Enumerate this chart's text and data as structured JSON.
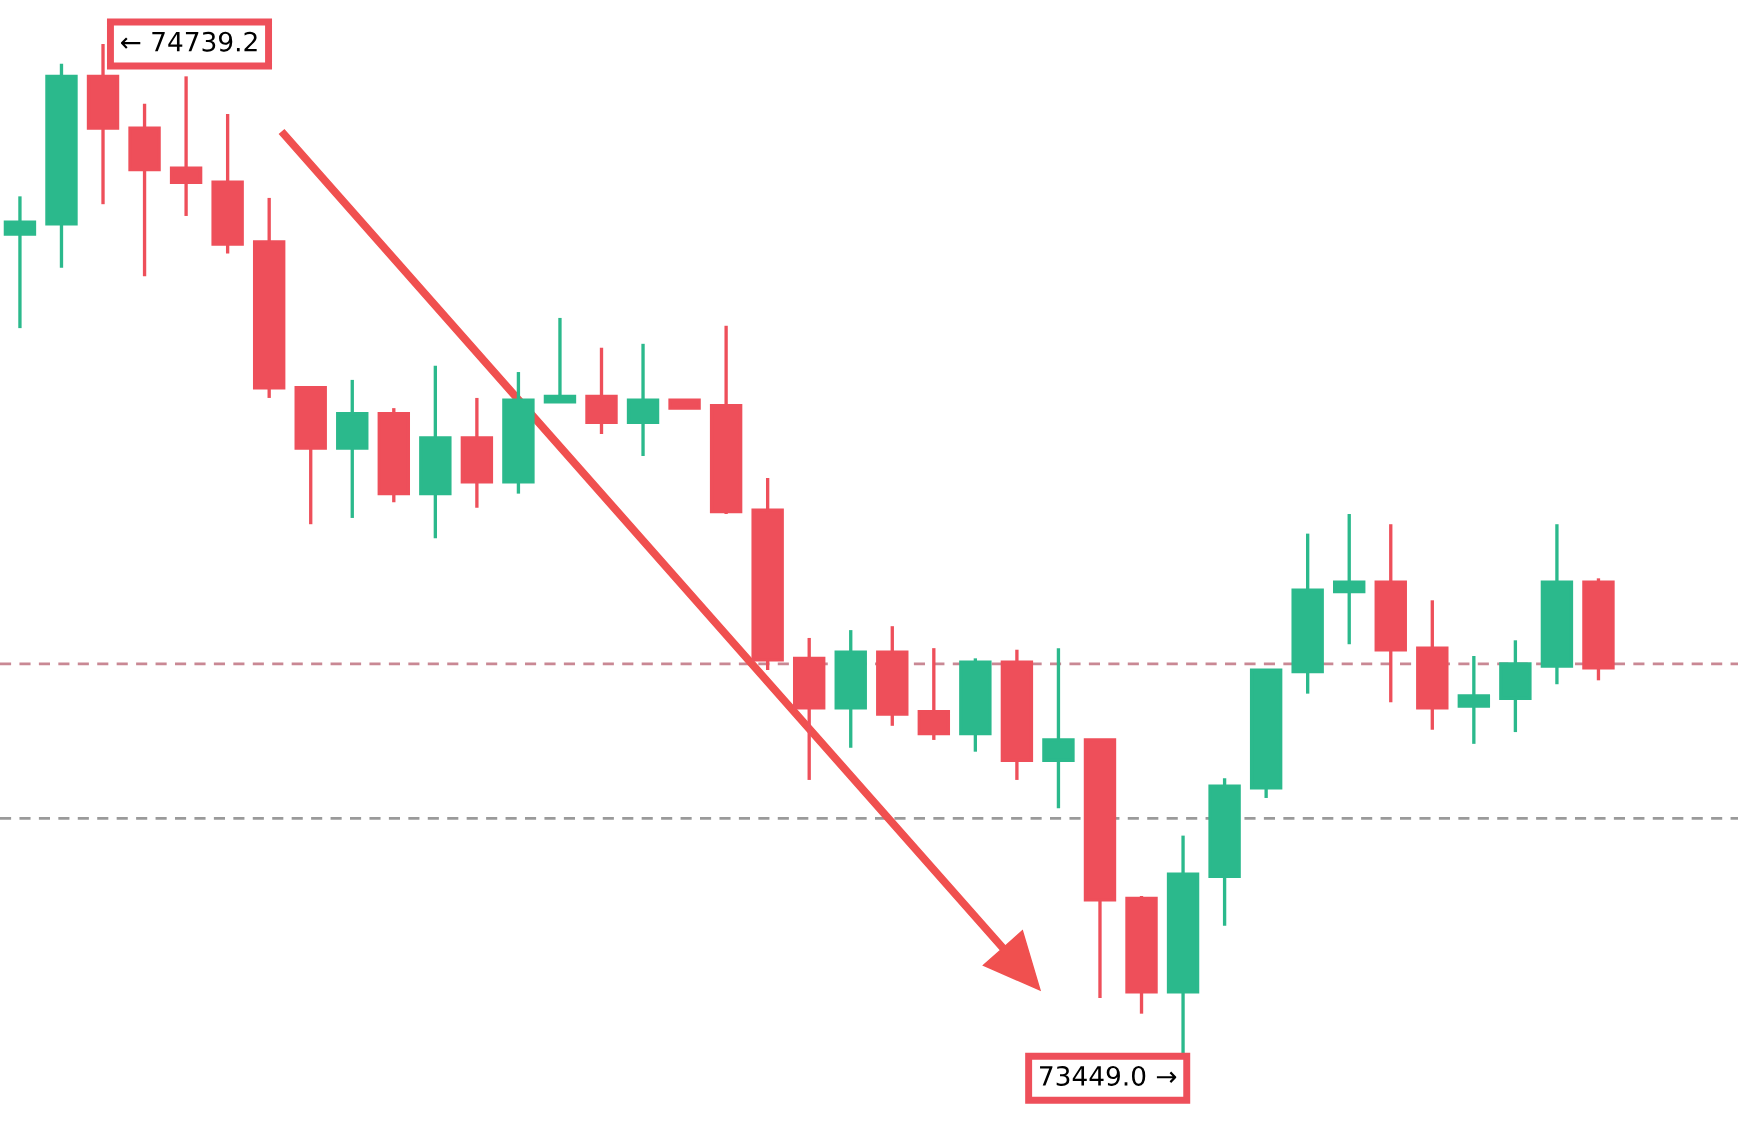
{
  "chart_data": {
    "type": "candlestick",
    "categories": [
      null,
      null,
      null,
      null,
      null,
      null,
      null,
      null,
      null,
      null,
      null,
      null,
      null,
      null,
      null,
      null,
      null,
      null,
      null,
      null,
      null,
      null,
      null,
      null,
      null,
      null,
      null,
      null,
      null,
      null,
      null,
      null,
      null,
      null,
      null,
      null,
      null,
      null,
      null
    ],
    "ohlc": [
      [
        74497,
        74545,
        74377,
        74512
      ],
      [
        74510,
        74714,
        74454,
        74698
      ],
      [
        74698,
        74739.2,
        74535,
        74632
      ],
      [
        74632,
        74663,
        74443,
        74579
      ],
      [
        74581,
        74698,
        74520,
        74563
      ],
      [
        74563,
        74650,
        74472,
        74484
      ],
      [
        74487,
        74543,
        74288,
        74301
      ],
      [
        74301,
        74301,
        74127,
        74224
      ],
      [
        74224,
        74311,
        74135,
        74268
      ],
      [
        74268,
        74275,
        74155,
        74166
      ],
      [
        74166,
        74329,
        74109,
        74237
      ],
      [
        74237,
        74288,
        74148,
        74181
      ],
      [
        74181,
        74321,
        74166,
        74285
      ],
      [
        74283,
        74390,
        74283,
        74290
      ],
      [
        74290,
        74352,
        74242,
        74257
      ],
      [
        74257,
        74357,
        74214,
        74285
      ],
      [
        74285,
        74285,
        74275,
        74275
      ],
      [
        74278,
        74380,
        74140,
        74143
      ],
      [
        74145,
        74186,
        73941,
        73954
      ],
      [
        73956,
        73982,
        73801,
        73893
      ],
      [
        73893,
        73992,
        73842,
        73964
      ],
      [
        73964,
        73997,
        73870,
        73885
      ],
      [
        73888,
        73969,
        73852,
        73860
      ],
      [
        73860,
        73956,
        73837,
        73951
      ],
      [
        73951,
        73967,
        73801,
        73826
      ],
      [
        73826,
        73969,
        73765,
        73852
      ],
      [
        73852,
        73852,
        73523,
        73648
      ],
      [
        73650,
        73653,
        73503,
        73531
      ],
      [
        73531,
        73730,
        73449.0,
        73681
      ],
      [
        73678,
        73803,
        73615,
        73793
      ],
      [
        73791,
        73941,
        73778,
        73941
      ],
      [
        73939,
        74115,
        73911,
        74043
      ],
      [
        74041,
        74140,
        73974,
        74053
      ],
      [
        74053,
        74127,
        73900,
        73967
      ],
      [
        73969,
        74030,
        73865,
        73893
      ],
      [
        73895,
        73959,
        73847,
        73908
      ],
      [
        73905,
        73979,
        73862,
        73949
      ],
      [
        73946,
        74127,
        73923,
        74053
      ],
      [
        74053,
        74058,
        73928,
        73944
      ]
    ],
    "colors": [
      "#2bb98c",
      "#2bb98c",
      "#ee4f5a",
      "#ee4f5a",
      "#ee4f5a",
      "#ee4f5a",
      "#ee4f5a",
      "#ee4f5a",
      "#2bb98c",
      "#ee4f5a",
      "#2bb98c",
      "#ee4f5a",
      "#2bb98c",
      "#2bb98c",
      "#ee4f5a",
      "#2bb98c",
      "#ee4f5a",
      "#ee4f5a",
      "#ee4f5a",
      "#ee4f5a",
      "#2bb98c",
      "#ee4f5a",
      "#ee4f5a",
      "#2bb98c",
      "#ee4f5a",
      "#2bb98c",
      "#ee4f5a",
      "#ee4f5a",
      "#2bb98c",
      "#2bb98c",
      "#2bb98c",
      "#2bb98c",
      "#2bb98c",
      "#ee4f5a",
      "#ee4f5a",
      "#2bb98c",
      "#2bb98c",
      "#2bb98c",
      "#ee4f5a"
    ],
    "ref_lines": [
      {
        "axis": "y",
        "value": 73949,
        "color": "#c98894",
        "line_style": "dashed"
      },
      {
        "axis": "y",
        "value": 73752,
        "color": "#9a9a9a",
        "line_style": "dashed"
      }
    ],
    "annotations": [
      "← 74739.2",
      "73449.0 →"
    ]
  }
}
